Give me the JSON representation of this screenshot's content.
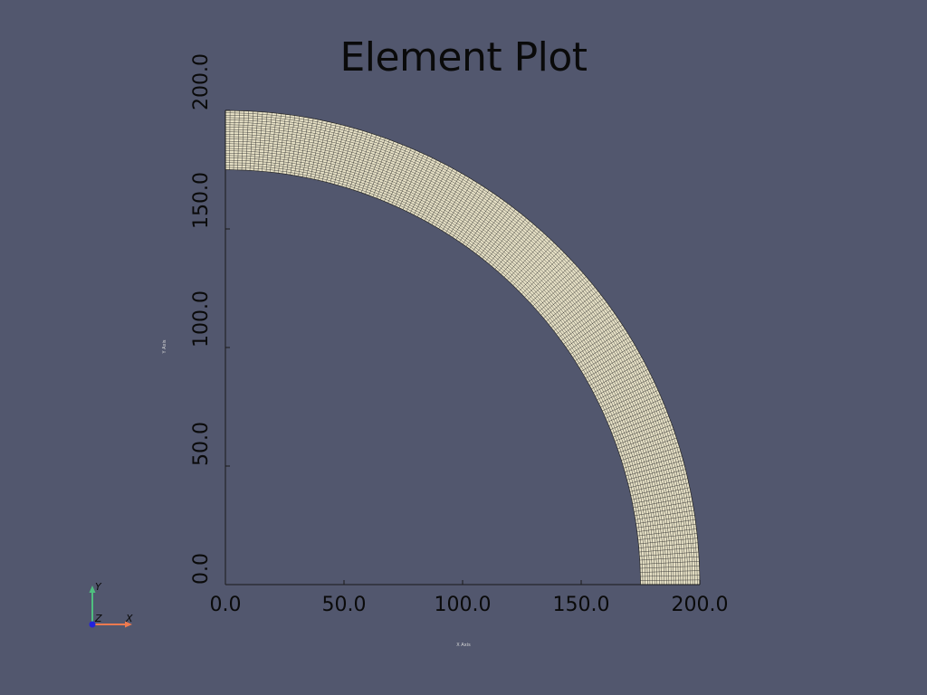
{
  "title": "Element Plot",
  "colors": {
    "background": "#52576e",
    "mesh_fill": "#e7e1c6",
    "mesh_lines": "#2a2a2a",
    "axis": "#1a1a1a",
    "triad_x": "#ee7a50",
    "triad_y": "#4fbf7f",
    "triad_z": "#2222dd"
  },
  "chart_data": {
    "type": "mesh",
    "shape": "quarter annulus",
    "inner_radius": 175,
    "outer_radius": 200,
    "radial_divisions": 25,
    "angular_divisions": 160,
    "xlim": [
      0,
      200
    ],
    "ylim": [
      0,
      200
    ],
    "x_ticks": [
      "0.0",
      "50.0",
      "100.0",
      "150.0",
      "200.0"
    ],
    "y_ticks": [
      "0.0",
      "50.0",
      "100.0",
      "150.0",
      "200.0"
    ],
    "xlabel": "X Axis",
    "ylabel": "Y Axis"
  },
  "orientation_triad": {
    "x_label": "X",
    "y_label": "Y",
    "z_label": "Z"
  }
}
